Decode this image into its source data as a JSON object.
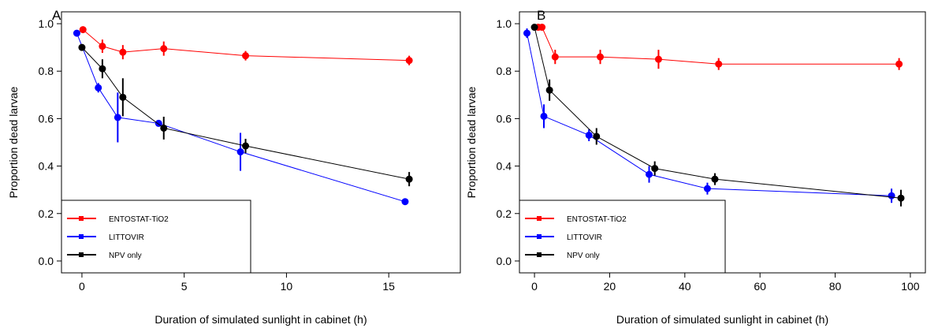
{
  "chart_data": [
    {
      "panel_label": "A",
      "type": "line",
      "xlabel": "Duration of simulated sunlight in cabinet (h)",
      "ylabel": "Proportion dead larvae",
      "xlim": [
        -1,
        18.5
      ],
      "ylim": [
        -0.05,
        1.05
      ],
      "x_ticks": [
        0,
        5,
        10,
        15
      ],
      "y_ticks": [
        0.0,
        0.2,
        0.4,
        0.6,
        0.8,
        1.0
      ],
      "x_tick_labels": [
        "0",
        "5",
        "10",
        "15"
      ],
      "y_tick_labels": [
        "0.0",
        "0.2",
        "0.4",
        "0.6",
        "0.8",
        "1.0"
      ],
      "grid": false,
      "legend_position": "bottom-left",
      "series": [
        {
          "name": "ENTOSTAT-TiO2",
          "color": "#ff0000",
          "x": [
            0.05,
            1.0,
            2.0,
            4.0,
            8.0,
            16.0
          ],
          "y": [
            0.975,
            0.905,
            0.88,
            0.895,
            0.865,
            0.845
          ],
          "err": [
            0.012,
            0.028,
            0.03,
            0.03,
            0.02,
            0.02
          ]
        },
        {
          "name": "LITTOVIR",
          "color": "#0000ff",
          "x": [
            -0.25,
            0.8,
            1.75,
            3.75,
            7.75,
            15.8
          ],
          "y": [
            0.96,
            0.73,
            0.605,
            0.58,
            0.46,
            0.25
          ],
          "err": [
            0.012,
            0.02,
            0.105,
            0.012,
            0.08,
            0.008
          ]
        },
        {
          "name": "NPV only",
          "color": "#000000",
          "x": [
            0.0,
            1.0,
            2.0,
            4.0,
            8.0,
            16.0
          ],
          "y": [
            0.9,
            0.81,
            0.69,
            0.56,
            0.485,
            0.345
          ],
          "err": [
            0.012,
            0.04,
            0.08,
            0.048,
            0.03,
            0.03
          ]
        }
      ]
    },
    {
      "panel_label": "B",
      "type": "line",
      "xlabel": "Duration of simulated sunlight in cabinet (h)",
      "ylabel": "Proportion dead larvae",
      "xlim": [
        -4,
        104
      ],
      "ylim": [
        -0.05,
        1.05
      ],
      "x_ticks": [
        0,
        20,
        40,
        60,
        80,
        100
      ],
      "y_ticks": [
        0.0,
        0.2,
        0.4,
        0.6,
        0.8,
        1.0
      ],
      "x_tick_labels": [
        "0",
        "20",
        "40",
        "60",
        "80",
        "100"
      ],
      "y_tick_labels": [
        "0.0",
        "0.2",
        "0.4",
        "0.6",
        "0.8",
        "1.0"
      ],
      "grid": false,
      "legend_position": "bottom-left",
      "series": [
        {
          "name": "ENTOSTAT-TiO2",
          "color": "#ff0000",
          "x": [
            1.0,
            2.0,
            5.5,
            17.5,
            33.0,
            49.0,
            97.0
          ],
          "y": [
            0.985,
            0.985,
            0.86,
            0.86,
            0.85,
            0.83,
            0.83
          ],
          "err": [
            0.005,
            0.005,
            0.03,
            0.03,
            0.04,
            0.025,
            0.025
          ]
        },
        {
          "name": "LITTOVIR",
          "color": "#0000ff",
          "x": [
            -2.0,
            2.5,
            14.5,
            30.5,
            46.0,
            95.0
          ],
          "y": [
            0.96,
            0.61,
            0.53,
            0.365,
            0.305,
            0.275
          ],
          "err": [
            0.02,
            0.05,
            0.025,
            0.035,
            0.025,
            0.03
          ]
        },
        {
          "name": "NPV only",
          "color": "#000000",
          "x": [
            0.0,
            4.0,
            16.5,
            32.0,
            48.0,
            97.5
          ],
          "y": [
            0.985,
            0.72,
            0.525,
            0.39,
            0.345,
            0.265
          ],
          "err": [
            0.008,
            0.045,
            0.035,
            0.03,
            0.025,
            0.035
          ]
        }
      ]
    }
  ]
}
